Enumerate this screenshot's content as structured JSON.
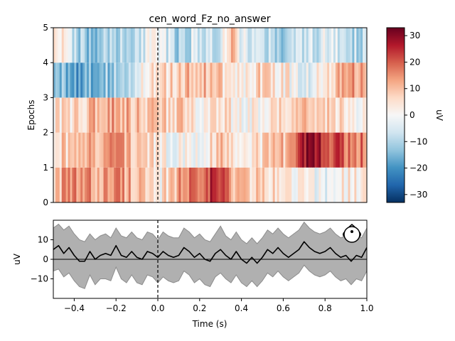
{
  "chart_data": [
    {
      "type": "heatmap",
      "title": "cen_word_Fz_no_answer",
      "ylabel": "Epochs",
      "xlim": [
        -0.5,
        1.0
      ],
      "ylim": [
        0,
        5
      ],
      "yticks": [
        "0",
        "1",
        "2",
        "3",
        "4",
        "5"
      ],
      "event_marker_x": 0.0,
      "colormap": "RdBu_r",
      "epochs": [
        {
          "name": "1",
          "trend": [
            [
              -0.5,
              10
            ],
            [
              -0.4,
              14
            ],
            [
              -0.3,
              13
            ],
            [
              -0.2,
              15
            ],
            [
              -0.1,
              12
            ],
            [
              0.0,
              -2
            ],
            [
              0.05,
              8
            ],
            [
              0.2,
              22
            ],
            [
              0.3,
              24
            ],
            [
              0.35,
              12
            ],
            [
              0.5,
              6
            ],
            [
              0.6,
              4
            ],
            [
              0.7,
              1
            ],
            [
              0.8,
              -2
            ],
            [
              0.9,
              3
            ],
            [
              1.0,
              6
            ]
          ]
        },
        {
          "name": "2",
          "trend": [
            [
              -0.5,
              8
            ],
            [
              -0.4,
              6
            ],
            [
              -0.3,
              12
            ],
            [
              -0.2,
              16
            ],
            [
              -0.1,
              10
            ],
            [
              0.0,
              2
            ],
            [
              0.05,
              0
            ],
            [
              0.2,
              2
            ],
            [
              0.3,
              8
            ],
            [
              0.4,
              4
            ],
            [
              0.5,
              6
            ],
            [
              0.6,
              10
            ],
            [
              0.65,
              18
            ],
            [
              0.7,
              28
            ],
            [
              0.75,
              30
            ],
            [
              0.8,
              26
            ],
            [
              0.9,
              18
            ],
            [
              1.0,
              18
            ]
          ]
        },
        {
          "name": "3",
          "trend": [
            [
              -0.5,
              3
            ],
            [
              -0.4,
              6
            ],
            [
              -0.3,
              10
            ],
            [
              -0.2,
              14
            ],
            [
              -0.1,
              10
            ],
            [
              0.0,
              6
            ],
            [
              0.1,
              8
            ],
            [
              0.2,
              3
            ],
            [
              0.3,
              4
            ],
            [
              0.4,
              2
            ],
            [
              0.5,
              0
            ],
            [
              0.6,
              6
            ],
            [
              0.7,
              12
            ],
            [
              0.8,
              6
            ],
            [
              0.9,
              4
            ],
            [
              1.0,
              1
            ]
          ]
        },
        {
          "name": "4",
          "trend": [
            [
              -0.5,
              -12
            ],
            [
              -0.4,
              -18
            ],
            [
              -0.3,
              -14
            ],
            [
              -0.2,
              -12
            ],
            [
              -0.1,
              -2
            ],
            [
              0.0,
              4
            ],
            [
              0.05,
              6
            ],
            [
              0.2,
              13
            ],
            [
              0.3,
              6
            ],
            [
              0.4,
              2
            ],
            [
              0.5,
              8
            ],
            [
              0.6,
              4
            ],
            [
              0.7,
              -4
            ],
            [
              0.8,
              6
            ],
            [
              0.9,
              14
            ],
            [
              1.0,
              14
            ]
          ]
        },
        {
          "name": "5",
          "trend": [
            [
              -0.5,
              10
            ],
            [
              -0.4,
              -8
            ],
            [
              -0.3,
              -16
            ],
            [
              -0.2,
              -10
            ],
            [
              -0.1,
              -6
            ],
            [
              0.0,
              -2
            ],
            [
              0.1,
              -10
            ],
            [
              0.2,
              -4
            ],
            [
              0.3,
              -6
            ],
            [
              0.35,
              12
            ],
            [
              0.4,
              -2
            ],
            [
              0.5,
              -6
            ],
            [
              0.6,
              -14
            ],
            [
              0.7,
              -8
            ],
            [
              0.8,
              -4
            ],
            [
              0.9,
              -8
            ],
            [
              1.0,
              -10
            ]
          ]
        }
      ]
    },
    {
      "type": "colorbar",
      "label": "uV",
      "range": [
        -33,
        33
      ],
      "ticks": [
        "−30",
        "−20",
        "−10",
        "0",
        "10",
        "20",
        "30"
      ],
      "tick_values": [
        -30,
        -20,
        -10,
        0,
        10,
        20,
        30
      ]
    },
    {
      "type": "line",
      "xlabel": "Time (s)",
      "ylabel": "uV",
      "xlim": [
        -0.5,
        1.0
      ],
      "ylim": [
        -20,
        20
      ],
      "xticks": [
        "−0.4",
        "−0.2",
        "0.0",
        "0.2",
        "0.4",
        "0.6",
        "0.8",
        "1.0"
      ],
      "xtick_values": [
        -0.4,
        -0.2,
        0.0,
        0.2,
        0.4,
        0.6,
        0.8,
        1.0
      ],
      "yticks": [
        "−10",
        "0",
        "10"
      ],
      "ytick_values": [
        -10,
        0,
        10
      ],
      "zero_line": 0,
      "event_marker_x": 0.0,
      "series": [
        {
          "role": "mean",
          "x": [
            -0.5,
            -0.475,
            -0.45,
            -0.425,
            -0.4,
            -0.375,
            -0.35,
            -0.325,
            -0.3,
            -0.275,
            -0.25,
            -0.225,
            -0.2,
            -0.175,
            -0.15,
            -0.125,
            -0.1,
            -0.075,
            -0.05,
            -0.025,
            0.0,
            0.025,
            0.05,
            0.075,
            0.1,
            0.125,
            0.15,
            0.175,
            0.2,
            0.225,
            0.25,
            0.275,
            0.3,
            0.325,
            0.35,
            0.375,
            0.4,
            0.425,
            0.45,
            0.475,
            0.5,
            0.525,
            0.55,
            0.575,
            0.6,
            0.625,
            0.65,
            0.675,
            0.7,
            0.725,
            0.75,
            0.775,
            0.8,
            0.825,
            0.85,
            0.875,
            0.9,
            0.925,
            0.95,
            0.975,
            1.0
          ],
          "y": [
            5,
            7,
            3,
            6,
            2,
            -1,
            -1,
            4,
            0,
            2,
            3,
            2,
            7,
            2,
            1,
            4,
            1,
            0,
            4,
            3,
            1,
            4,
            2,
            1,
            2,
            6,
            4,
            1,
            3,
            0,
            -1,
            3,
            5,
            2,
            0,
            4,
            0,
            -2,
            1,
            -2,
            1,
            5,
            3,
            6,
            3,
            1,
            3,
            5,
            9,
            6,
            4,
            3,
            4,
            6,
            3,
            1,
            2,
            -1,
            2,
            1,
            6
          ]
        },
        {
          "role": "ci-upper",
          "y": [
            16,
            18,
            15,
            17,
            13,
            10,
            9,
            13,
            10,
            12,
            13,
            11,
            16,
            12,
            11,
            14,
            11,
            10,
            14,
            13,
            10,
            14,
            12,
            11,
            11,
            16,
            14,
            11,
            13,
            10,
            9,
            13,
            17,
            12,
            10,
            14,
            10,
            8,
            11,
            8,
            11,
            15,
            13,
            16,
            13,
            11,
            13,
            15,
            19,
            16,
            14,
            13,
            14,
            16,
            13,
            11,
            12,
            9,
            12,
            11,
            16
          ]
        },
        {
          "role": "ci-lower",
          "y": [
            -6,
            -5,
            -9,
            -7,
            -11,
            -14,
            -15,
            -8,
            -13,
            -10,
            -10,
            -11,
            -4,
            -10,
            -12,
            -8,
            -12,
            -13,
            -8,
            -9,
            -12,
            -9,
            -11,
            -12,
            -11,
            -6,
            -8,
            -12,
            -10,
            -13,
            -14,
            -9,
            -7,
            -10,
            -12,
            -8,
            -12,
            -14,
            -11,
            -14,
            -11,
            -7,
            -9,
            -6,
            -9,
            -11,
            -9,
            -7,
            -3,
            -6,
            -8,
            -9,
            -8,
            -6,
            -9,
            -11,
            -10,
            -13,
            -10,
            -11,
            -6
          ]
        }
      ],
      "colors": {
        "mean": "#000000",
        "ci": "#b0b0b0",
        "ci_edge": "#8c8c8c"
      }
    }
  ]
}
